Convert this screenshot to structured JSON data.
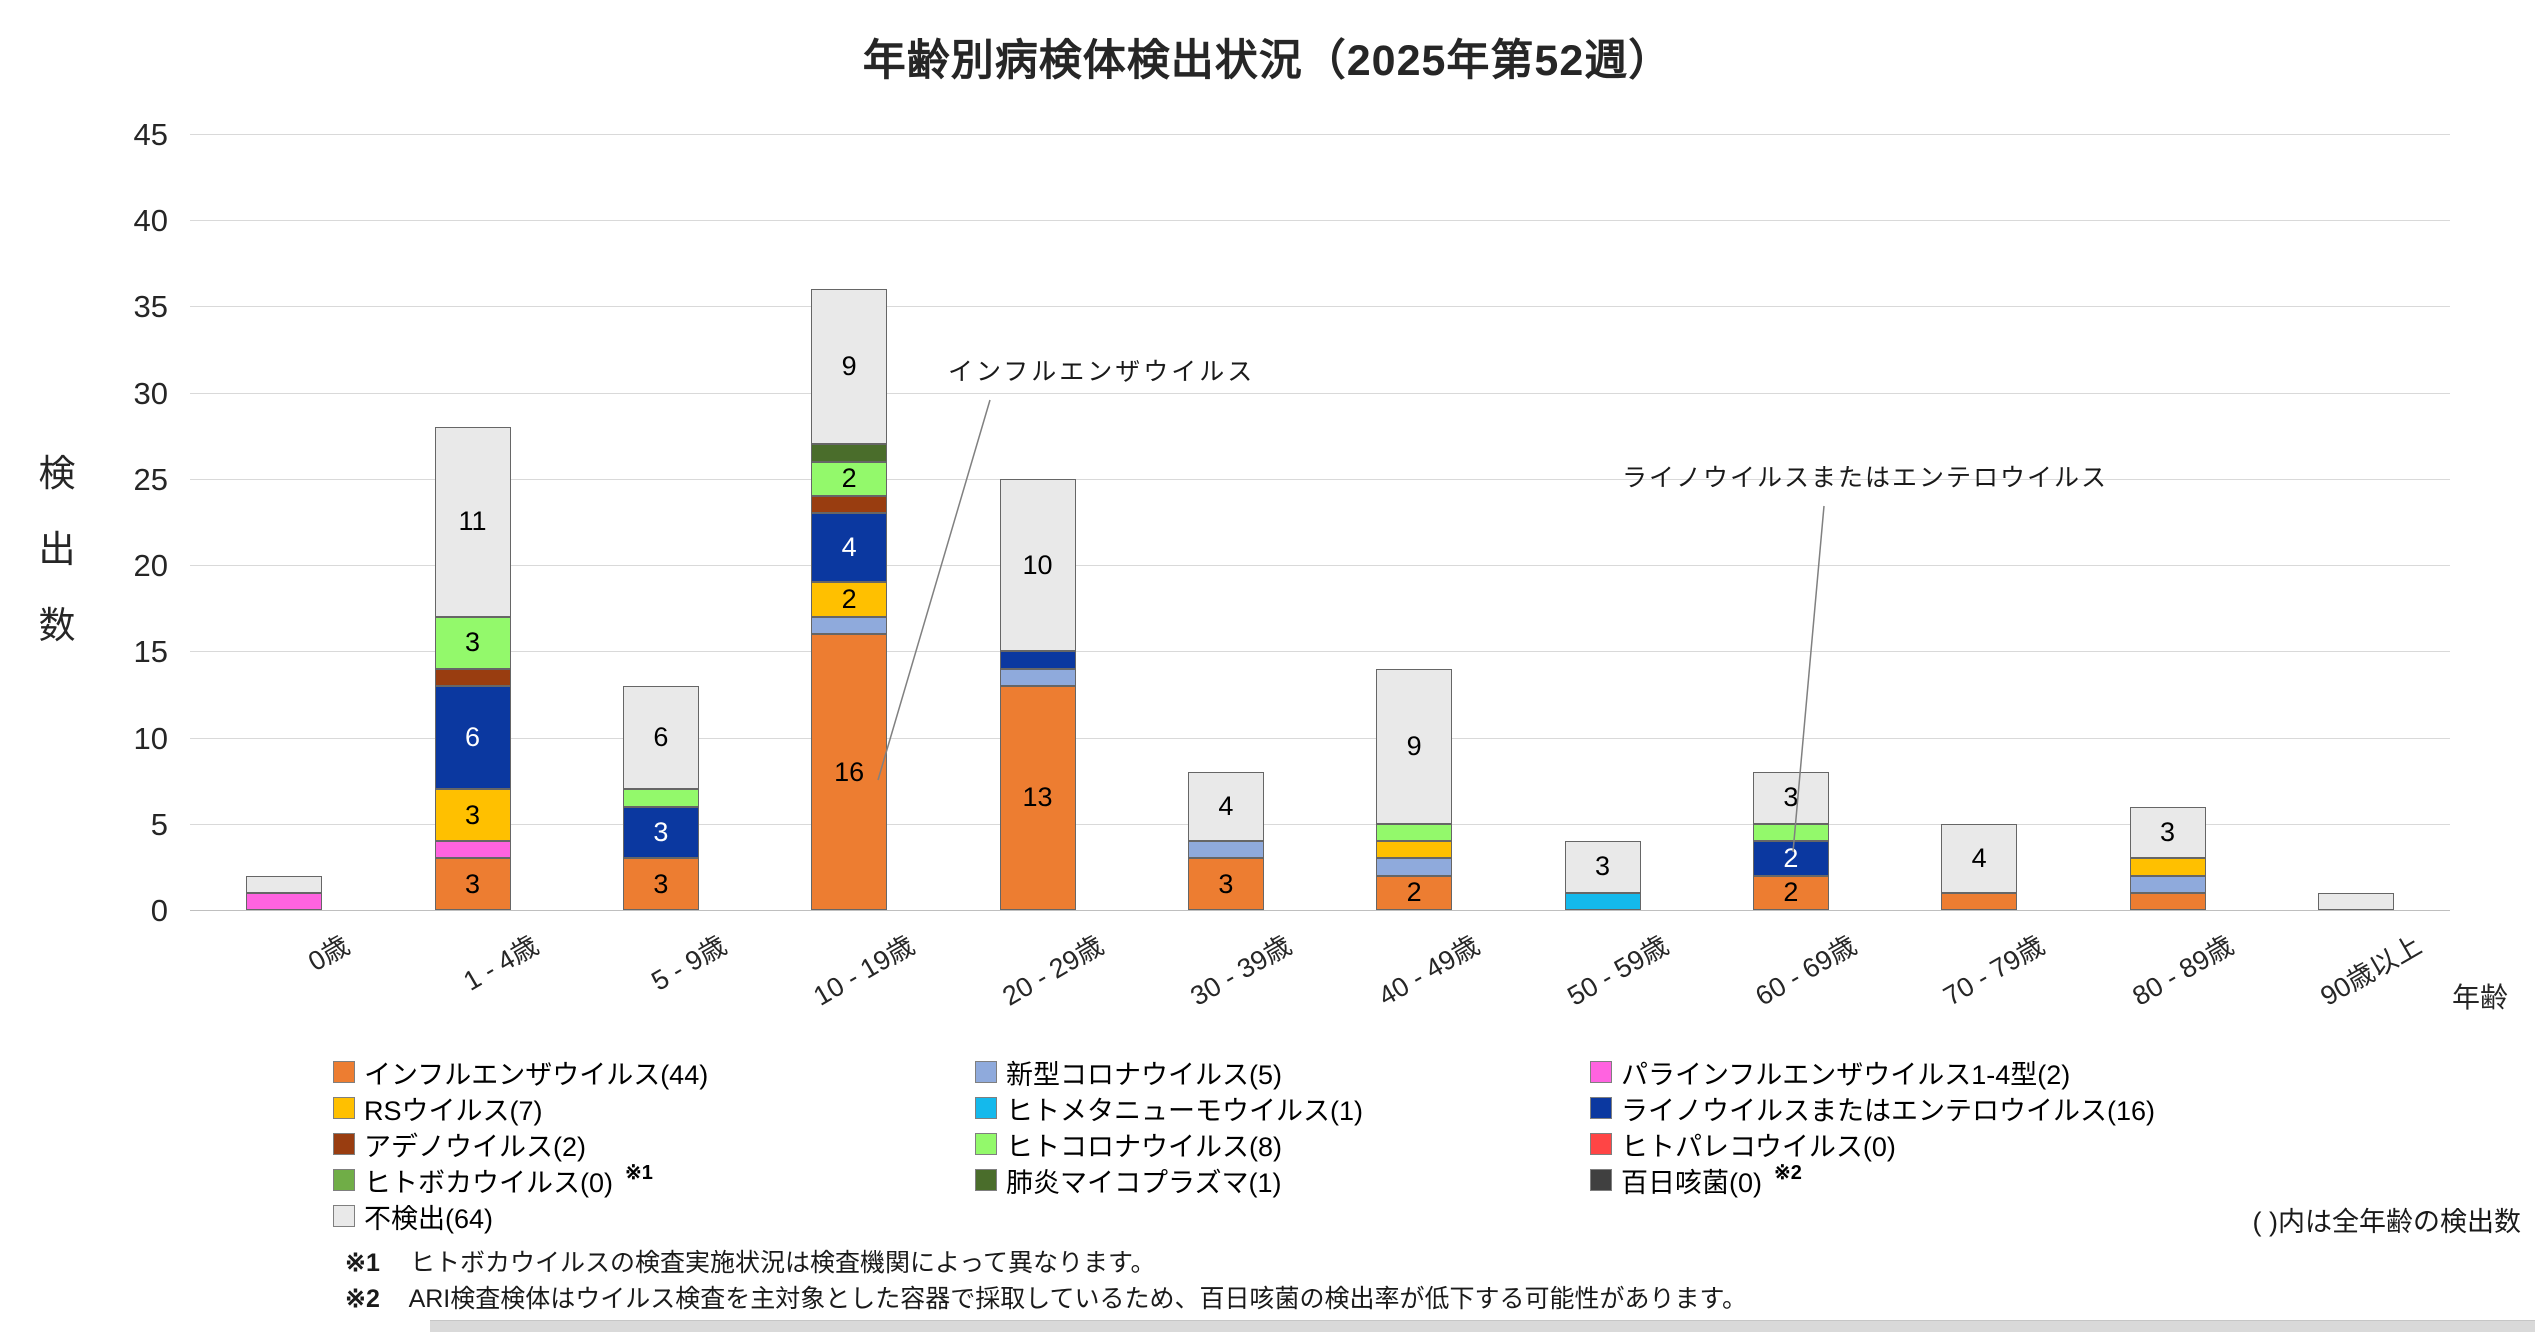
{
  "title": "年齢別病検体検出状況（2025年第52週）",
  "chart_data": {
    "type": "bar",
    "stacked": true,
    "title": "年齢別病検体検出状況（2025年第52週）",
    "xlabel": "年齢",
    "ylabel": "検出数",
    "ylim": [
      0,
      45
    ],
    "ytick_step": 5,
    "grid": true,
    "legend_position": "bottom",
    "categories": [
      "0歳",
      "1 - 4歳",
      "5 - 9歳",
      "10 - 19歳",
      "20 - 29歳",
      "30 - 39歳",
      "40 - 49歳",
      "50 - 59歳",
      "60 - 69歳",
      "70 - 79歳",
      "80 - 89歳",
      "90歳以上"
    ],
    "series": [
      {
        "name": "インフルエンザウイルス",
        "total": 44,
        "color": "#ED7D31",
        "values": [
          0,
          3,
          3,
          16,
          13,
          3,
          2,
          0,
          2,
          1,
          1,
          0
        ]
      },
      {
        "name": "新型コロナウイルス",
        "total": 5,
        "color": "#8FAADC",
        "values": [
          0,
          0,
          0,
          1,
          1,
          1,
          1,
          0,
          0,
          0,
          1,
          0
        ]
      },
      {
        "name": "パラインフルエンザウイルス1-4型",
        "total": 2,
        "color": "#FF63E0",
        "values": [
          1,
          1,
          0,
          0,
          0,
          0,
          0,
          0,
          0,
          0,
          0,
          0
        ]
      },
      {
        "name": "RSウイルス",
        "total": 7,
        "color": "#FFC000",
        "values": [
          0,
          3,
          0,
          2,
          0,
          0,
          1,
          0,
          0,
          0,
          1,
          0
        ]
      },
      {
        "name": "ヒトメタニューモウイルス",
        "total": 1,
        "color": "#14B9EC",
        "values": [
          0,
          0,
          0,
          0,
          0,
          0,
          0,
          1,
          0,
          0,
          0,
          0
        ]
      },
      {
        "name": "ライノウイルスまたはエンテロウイルス",
        "total": 16,
        "color": "#0B38A0",
        "values": [
          0,
          6,
          3,
          4,
          1,
          0,
          0,
          0,
          2,
          0,
          0,
          0
        ],
        "label_color": "#FFFFFF"
      },
      {
        "name": "アデノウイルス",
        "total": 2,
        "color": "#993D10",
        "values": [
          0,
          1,
          0,
          1,
          0,
          0,
          0,
          0,
          0,
          0,
          0,
          0
        ]
      },
      {
        "name": "ヒトコロナウイルス",
        "total": 8,
        "color": "#93F96B",
        "values": [
          0,
          3,
          1,
          2,
          0,
          0,
          1,
          0,
          1,
          0,
          0,
          0
        ]
      },
      {
        "name": "ヒトパレコウイルス",
        "total": 0,
        "color": "#FF4545",
        "values": [
          0,
          0,
          0,
          0,
          0,
          0,
          0,
          0,
          0,
          0,
          0,
          0
        ]
      },
      {
        "name": "ヒトボカウイルス",
        "total": 0,
        "color": "#70AD47",
        "values": [
          0,
          0,
          0,
          0,
          0,
          0,
          0,
          0,
          0,
          0,
          0,
          0
        ]
      },
      {
        "name": "肺炎マイコプラズマ",
        "total": 1,
        "color": "#4A6D2B",
        "values": [
          0,
          0,
          0,
          1,
          0,
          0,
          0,
          0,
          0,
          0,
          0,
          0
        ]
      },
      {
        "name": "百日咳菌",
        "total": 0,
        "color": "#404040",
        "values": [
          0,
          0,
          0,
          0,
          0,
          0,
          0,
          0,
          0,
          0,
          0,
          0
        ]
      },
      {
        "name": "不検出",
        "total": 64,
        "color": "#E9E9E9",
        "values": [
          1,
          11,
          6,
          9,
          10,
          4,
          9,
          3,
          3,
          4,
          3,
          1
        ]
      }
    ],
    "bar_totals": [
      2,
      28,
      13,
      36,
      25,
      8,
      14,
      4,
      8,
      5,
      6,
      1
    ]
  },
  "y_axis": {
    "title_chars": [
      "検",
      "出",
      "数"
    ],
    "ticks": [
      "0",
      "5",
      "10",
      "15",
      "20",
      "25",
      "30",
      "35",
      "40",
      "45"
    ]
  },
  "x_axis": {
    "title": "年齢"
  },
  "annotations": [
    {
      "text": "インフルエンザウイルス"
    },
    {
      "text": "ライノウイルスまたはエンテロウイルス"
    }
  ],
  "legend": {
    "columns": [
      [
        {
          "label": "インフルエンザウイルス(44)",
          "color": "#ED7D31"
        },
        {
          "label": "RSウイルス(7)",
          "color": "#FFC000"
        },
        {
          "label": "アデノウイルス(2)",
          "color": "#993D10"
        },
        {
          "label": "ヒトボカウイルス(0)",
          "color": "#70AD47",
          "note": "※1"
        },
        {
          "label": "不検出(64)",
          "color": "#E9E9E9"
        }
      ],
      [
        {
          "label": "新型コロナウイルス(5)",
          "color": "#8FAADC"
        },
        {
          "label": "ヒトメタニューモウイルス(1)",
          "color": "#14B9EC"
        },
        {
          "label": "ヒトコロナウイルス(8)",
          "color": "#93F96B"
        },
        {
          "label": "肺炎マイコプラズマ(1)",
          "color": "#4A6D2B"
        }
      ],
      [
        {
          "label": "パラインフルエンザウイルス1-4型(2)",
          "color": "#FF63E0"
        },
        {
          "label": "ライノウイルスまたはエンテロウイルス(16)",
          "color": "#0B38A0"
        },
        {
          "label": "ヒトパレコウイルス(0)",
          "color": "#FF4545"
        },
        {
          "label": "百日咳菌(0)",
          "color": "#404040",
          "note": "※2"
        }
      ]
    ],
    "caption": "( )内は全年齢の検出数"
  },
  "footnotes": [
    {
      "mark": "※1",
      "text": "ヒトボカウイルスの検査実施状況は検査機関によって異なります。"
    },
    {
      "mark": "※2",
      "text": "ARI検査検体はウイルス検査を主対象とした容器で採取しているため、百日咳菌の検出率が低下する可能性があります。"
    }
  ]
}
